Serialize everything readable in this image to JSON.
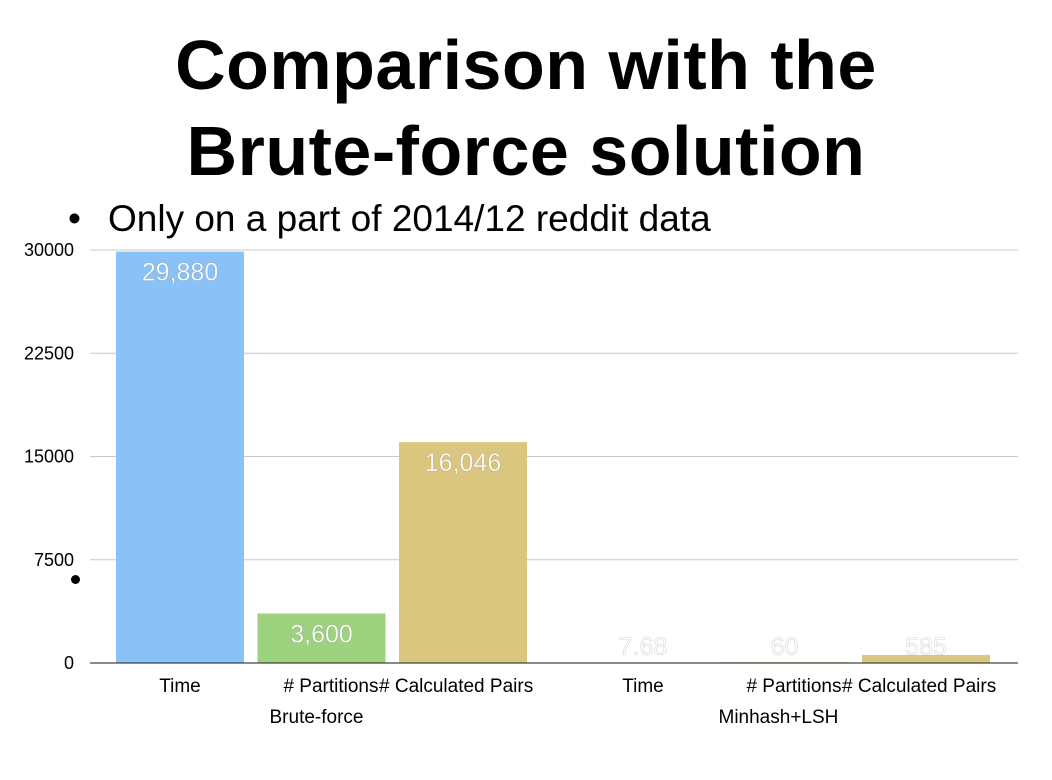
{
  "slide": {
    "title_line1": "Comparison with the",
    "title_line2": "Brute-force solution",
    "bullet": "Only on a part of 2014/12 reddit data"
  },
  "chart_data": {
    "type": "bar",
    "groups": [
      {
        "name": "Brute-force",
        "categories": [
          "Time",
          "# Partitions",
          "# Calculated Pairs"
        ],
        "values": [
          29880,
          3600,
          16046
        ],
        "labels": [
          "29,880",
          "3,600",
          "16,046"
        ]
      },
      {
        "name": "Minhash+LSH",
        "categories": [
          "Time",
          "# Partitions",
          "# Calculated Pairs"
        ],
        "values": [
          7.68,
          60,
          585
        ],
        "labels": [
          "7.68",
          "60",
          "585"
        ]
      }
    ],
    "colors": [
      "#8ac1f6",
      "#9dd37e",
      "#dbc67f"
    ],
    "ylim": [
      0,
      30000
    ],
    "yticks": [
      0,
      7500,
      15000,
      22500,
      30000
    ],
    "grid": true
  }
}
